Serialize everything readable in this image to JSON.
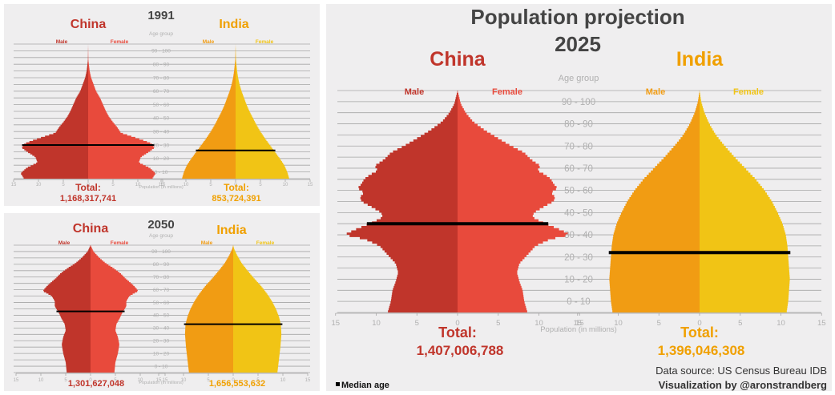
{
  "colors": {
    "china_male": "#c0352b",
    "china_female": "#e84a3c",
    "india_male": "#f19c13",
    "india_female": "#f1c415",
    "china_text": "#c0352b",
    "india_text": "#f0a000",
    "grid": "#a6a6a6",
    "axis_text": "#b0b0b0",
    "title_text": "#444444",
    "median": "#000000"
  },
  "chart_data": [
    {
      "type": "bar",
      "subtype": "population-pyramid",
      "id": "1991",
      "year_label": "1991",
      "country_left": "China",
      "country_right": "India",
      "male_label": "Male",
      "female_label": "Female",
      "age_axis_title": "Age group",
      "age_labels": [
        "0 - 10",
        "10 - 20",
        "20 - 30",
        "30 - 40",
        "40 - 50",
        "50 - 60",
        "60 - 70",
        "70 - 80",
        "80 - 90",
        "90 - 100"
      ],
      "xlabel": "Population (in millions)",
      "x_ticks": [
        "15",
        "10",
        "5",
        "0",
        "5",
        "10",
        "15"
      ],
      "xlim": [
        -15,
        15
      ],
      "total_label": "Total:",
      "china_total": "1,168,317,741",
      "india_total": "853,724,391",
      "china_median_age": 25,
      "india_median_age": 21,
      "china_profile": [
        [
          0,
          12.9
        ],
        [
          4,
          13.6
        ],
        [
          8,
          12.4
        ],
        [
          12,
          10.2
        ],
        [
          16,
          10.6
        ],
        [
          20,
          12.3
        ],
        [
          23,
          13.4
        ],
        [
          26,
          12.8
        ],
        [
          28,
          11.5
        ],
        [
          31,
          9.1
        ],
        [
          34,
          6.6
        ],
        [
          38,
          5.9
        ],
        [
          42,
          5.0
        ],
        [
          46,
          4.2
        ],
        [
          50,
          3.6
        ],
        [
          55,
          3.0
        ],
        [
          60,
          2.4
        ],
        [
          65,
          1.6
        ],
        [
          70,
          1.1
        ],
        [
          75,
          0.6
        ],
        [
          80,
          0.3
        ],
        [
          88,
          0.05
        ],
        [
          100,
          0
        ]
      ],
      "india_profile": [
        [
          0,
          10.8
        ],
        [
          5,
          10.4
        ],
        [
          10,
          9.8
        ],
        [
          15,
          8.9
        ],
        [
          20,
          7.9
        ],
        [
          25,
          6.9
        ],
        [
          30,
          5.9
        ],
        [
          35,
          5.0
        ],
        [
          40,
          4.2
        ],
        [
          45,
          3.5
        ],
        [
          50,
          2.8
        ],
        [
          55,
          2.2
        ],
        [
          60,
          1.7
        ],
        [
          65,
          1.2
        ],
        [
          70,
          0.8
        ],
        [
          75,
          0.5
        ],
        [
          80,
          0.3
        ],
        [
          88,
          0.08
        ],
        [
          100,
          0
        ]
      ]
    },
    {
      "type": "bar",
      "subtype": "population-pyramid",
      "id": "2050",
      "year_label": "2050",
      "country_left": "China",
      "country_right": "India",
      "male_label": "Male",
      "female_label": "Female",
      "age_axis_title": "Age group",
      "age_labels": [
        "0 - 10",
        "10 - 20",
        "20 - 30",
        "30 - 40",
        "40 - 50",
        "50 - 60",
        "60 - 70",
        "70 - 80",
        "80 - 90",
        "90 - 100"
      ],
      "xlabel": "Population (in millions)",
      "x_ticks": [
        "15",
        "10",
        "5",
        "0",
        "5",
        "10",
        "15"
      ],
      "xlim": [
        -15,
        15
      ],
      "china_total": "1,301,627,048",
      "india_total": "1,656,553,632",
      "china_median_age": 48,
      "india_median_age": 38,
      "china_profile": [
        [
          0,
          4.8
        ],
        [
          8,
          5.0
        ],
        [
          15,
          5.5
        ],
        [
          22,
          5.8
        ],
        [
          28,
          5.5
        ],
        [
          33,
          5.0
        ],
        [
          38,
          5.2
        ],
        [
          42,
          5.8
        ],
        [
          47,
          6.4
        ],
        [
          52,
          7.2
        ],
        [
          56,
          7.2
        ],
        [
          60,
          7.8
        ],
        [
          64,
          9.6
        ],
        [
          67,
          9.0
        ],
        [
          70,
          8.2
        ],
        [
          74,
          7.0
        ],
        [
          78,
          6.0
        ],
        [
          82,
          4.6
        ],
        [
          86,
          3.0
        ],
        [
          90,
          1.8
        ],
        [
          95,
          0.6
        ],
        [
          100,
          0
        ]
      ],
      "india_profile": [
        [
          0,
          8.9
        ],
        [
          10,
          9.2
        ],
        [
          20,
          9.5
        ],
        [
          30,
          9.7
        ],
        [
          38,
          9.6
        ],
        [
          44,
          9.2
        ],
        [
          50,
          8.6
        ],
        [
          56,
          7.8
        ],
        [
          62,
          6.8
        ],
        [
          68,
          5.6
        ],
        [
          74,
          4.2
        ],
        [
          80,
          2.9
        ],
        [
          86,
          1.7
        ],
        [
          92,
          0.8
        ],
        [
          97,
          0.2
        ],
        [
          100,
          0
        ]
      ]
    },
    {
      "type": "bar",
      "subtype": "population-pyramid",
      "id": "2025",
      "title_line1": "Population projection",
      "year_label": "2025",
      "country_left": "China",
      "country_right": "India",
      "male_label": "Male",
      "female_label": "Female",
      "age_axis_title": "Age group",
      "age_labels": [
        "0 - 10",
        "10 - 20",
        "20 - 30",
        "30 - 40",
        "40 - 50",
        "50 - 60",
        "60 - 70",
        "70 - 80",
        "80 - 90",
        "90 - 100"
      ],
      "xlabel": "Population (in millions)",
      "x_ticks": [
        "15",
        "10",
        "5",
        "0",
        "5",
        "10",
        "15"
      ],
      "xlim": [
        -15,
        15
      ],
      "total_label": "Total:",
      "china_total": "1,407,006,788",
      "india_total": "1,396,046,308",
      "china_median_age": 40,
      "india_median_age": 27,
      "china_profile": [
        [
          0,
          8.6
        ],
        [
          5,
          8.2
        ],
        [
          10,
          8.0
        ],
        [
          14,
          7.6
        ],
        [
          18,
          7.3
        ],
        [
          22,
          7.6
        ],
        [
          26,
          8.6
        ],
        [
          30,
          9.6
        ],
        [
          33,
          11.4
        ],
        [
          35,
          13.9
        ],
        [
          37,
          12.8
        ],
        [
          39,
          11.5
        ],
        [
          41,
          10.2
        ],
        [
          43,
          9.2
        ],
        [
          45,
          9.4
        ],
        [
          48,
          10.8
        ],
        [
          50,
          11.8
        ],
        [
          52,
          12.0
        ],
        [
          54,
          11.5
        ],
        [
          56,
          12.3
        ],
        [
          58,
          11.8
        ],
        [
          60,
          11.5
        ],
        [
          62,
          10.8
        ],
        [
          64,
          9.8
        ],
        [
          66,
          10.2
        ],
        [
          69,
          9.0
        ],
        [
          72,
          8.2
        ],
        [
          75,
          6.6
        ],
        [
          78,
          5.2
        ],
        [
          82,
          3.4
        ],
        [
          86,
          1.9
        ],
        [
          90,
          1.0
        ],
        [
          94,
          0.4
        ],
        [
          100,
          0
        ]
      ],
      "india_profile": [
        [
          0,
          10.7
        ],
        [
          5,
          10.9
        ],
        [
          10,
          11.0
        ],
        [
          15,
          11.1
        ],
        [
          20,
          11.0
        ],
        [
          25,
          10.9
        ],
        [
          30,
          10.8
        ],
        [
          35,
          10.6
        ],
        [
          40,
          10.2
        ],
        [
          45,
          9.6
        ],
        [
          50,
          8.9
        ],
        [
          55,
          8.0
        ],
        [
          60,
          6.9
        ],
        [
          65,
          5.6
        ],
        [
          70,
          4.3
        ],
        [
          75,
          3.1
        ],
        [
          80,
          2.0
        ],
        [
          85,
          1.2
        ],
        [
          90,
          0.6
        ],
        [
          95,
          0.2
        ],
        [
          100,
          0
        ]
      ]
    }
  ],
  "legend": {
    "median_label": "Median age"
  },
  "credits": {
    "source": "Data source: US Census Bureau IDB",
    "author": "Visualization by @aronstrandberg"
  }
}
